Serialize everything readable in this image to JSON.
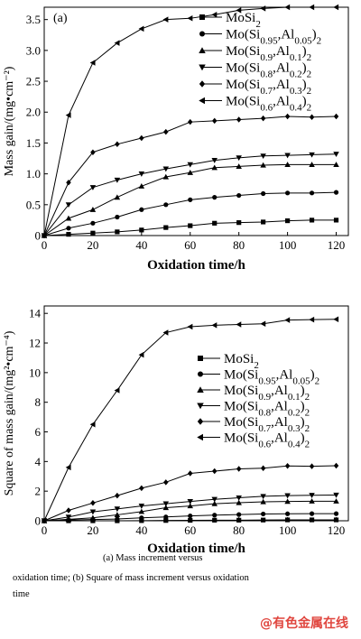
{
  "chart_data": [
    {
      "type": "line",
      "panel_label": "(a)",
      "xlabel": "Oxidation time/h",
      "ylabel": "Mass gain/(mg•cm⁻²)",
      "xlim": [
        0,
        125
      ],
      "ylim": [
        0,
        3.7
      ],
      "xticks": [
        0,
        20,
        40,
        60,
        80,
        100,
        120
      ],
      "yticks": [
        0,
        0.5,
        1.0,
        1.5,
        2.0,
        2.5,
        3.0,
        3.5
      ],
      "ytick_labels": [
        "0",
        "0.5",
        "1.0",
        "1.5",
        "2.0",
        "2.5",
        "3.0",
        "3.5"
      ],
      "grid": false,
      "legend_position": "top-right",
      "x": [
        0,
        10,
        20,
        30,
        40,
        50,
        60,
        70,
        80,
        90,
        100,
        110,
        120
      ],
      "series": [
        {
          "name": "MoSi₂",
          "marker": "square",
          "values": [
            0,
            0.02,
            0.04,
            0.06,
            0.09,
            0.13,
            0.16,
            0.2,
            0.21,
            0.22,
            0.24,
            0.25,
            0.25
          ]
        },
        {
          "name": "Mo(Si₀.₉₅,Al₀.₀₅)₂",
          "marker": "circle",
          "values": [
            0,
            0.12,
            0.2,
            0.3,
            0.42,
            0.5,
            0.58,
            0.62,
            0.65,
            0.68,
            0.69,
            0.69,
            0.7
          ]
        },
        {
          "name": "Mo(Si₀.₉,Al₀.₁)₂",
          "marker": "triangle-up",
          "values": [
            0,
            0.28,
            0.42,
            0.62,
            0.8,
            0.95,
            1.02,
            1.1,
            1.12,
            1.14,
            1.15,
            1.15,
            1.15
          ]
        },
        {
          "name": "Mo(Si₀.₈,Al₀.₂)₂",
          "marker": "triangle-down",
          "values": [
            0,
            0.5,
            0.78,
            0.9,
            1.0,
            1.08,
            1.15,
            1.22,
            1.26,
            1.29,
            1.3,
            1.31,
            1.32
          ]
        },
        {
          "name": "Mo(Si₀.₇,Al₀.₃)₂",
          "marker": "diamond",
          "values": [
            0,
            0.86,
            1.35,
            1.48,
            1.58,
            1.68,
            1.84,
            1.86,
            1.88,
            1.9,
            1.93,
            1.92,
            1.93
          ]
        },
        {
          "name": "Mo(Si₀.₆,Al₀.₄)₂",
          "marker": "triangle-left",
          "values": [
            0,
            1.95,
            2.8,
            3.12,
            3.35,
            3.5,
            3.52,
            3.58,
            3.65,
            3.68,
            3.7,
            3.7,
            3.7
          ]
        }
      ]
    },
    {
      "type": "line",
      "panel_label": "(b)",
      "xlabel": "Oxidation time/h",
      "ylabel": "Square of mass gain/(mg²•cm⁻⁴)",
      "xlim": [
        0,
        125
      ],
      "ylim": [
        0,
        14.5
      ],
      "xticks": [
        0,
        20,
        40,
        60,
        80,
        100,
        120
      ],
      "yticks": [
        0,
        2,
        4,
        6,
        8,
        10,
        12,
        14
      ],
      "ytick_labels": [
        "0",
        "2",
        "4",
        "6",
        "8",
        "10",
        "12",
        "14"
      ],
      "grid": false,
      "legend_position": "right",
      "x": [
        0,
        10,
        20,
        30,
        40,
        50,
        60,
        70,
        80,
        90,
        100,
        110,
        120
      ],
      "series": [
        {
          "name": "MoSi₂",
          "marker": "square",
          "values": [
            0,
            0.0,
            0.0,
            0.0,
            0.01,
            0.02,
            0.03,
            0.04,
            0.04,
            0.05,
            0.06,
            0.06,
            0.06
          ]
        },
        {
          "name": "Mo(Si₀.₉₅,Al₀.₀₅)₂",
          "marker": "circle",
          "values": [
            0,
            0.05,
            0.08,
            0.12,
            0.2,
            0.26,
            0.33,
            0.38,
            0.42,
            0.46,
            0.47,
            0.48,
            0.48
          ]
        },
        {
          "name": "Mo(Si₀.₉,Al₀.₁)₂",
          "marker": "triangle-up",
          "values": [
            0,
            0.1,
            0.2,
            0.4,
            0.62,
            0.88,
            1.0,
            1.15,
            1.22,
            1.28,
            1.3,
            1.32,
            1.32
          ]
        },
        {
          "name": "Mo(Si₀.₈,Al₀.₂)₂",
          "marker": "triangle-down",
          "values": [
            0,
            0.25,
            0.6,
            0.8,
            1.0,
            1.15,
            1.3,
            1.45,
            1.55,
            1.65,
            1.7,
            1.72,
            1.74
          ]
        },
        {
          "name": "Mo(Si₀.₇,Al₀.₃)₂",
          "marker": "diamond",
          "values": [
            0,
            0.7,
            1.2,
            1.7,
            2.2,
            2.6,
            3.2,
            3.35,
            3.5,
            3.55,
            3.7,
            3.68,
            3.72
          ]
        },
        {
          "name": "Mo(Si₀.₆,Al₀.₄)₂",
          "marker": "triangle-left",
          "values": [
            0,
            3.6,
            6.5,
            8.8,
            11.2,
            12.7,
            13.1,
            13.2,
            13.25,
            13.3,
            13.55,
            13.58,
            13.6
          ]
        }
      ]
    }
  ],
  "caption": {
    "line1": "(a)  Mass  increment  versus",
    "line2": "oxidation time; (b) Square of mass increment versus oxidation",
    "line3": "time"
  },
  "watermark": {
    "text": "@有色金属在线",
    "color": "#e0463f"
  }
}
